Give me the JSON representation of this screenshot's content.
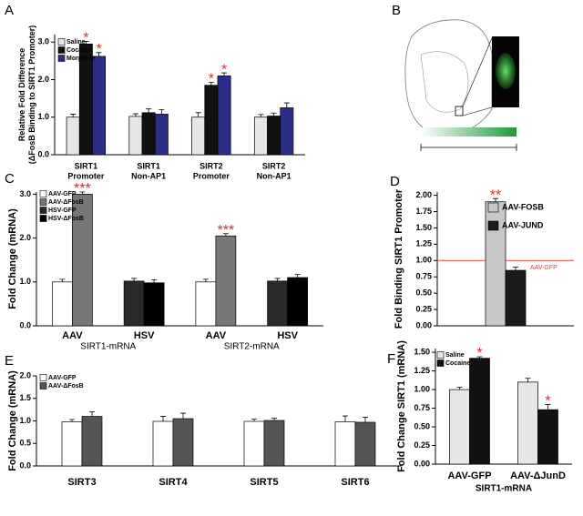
{
  "chart_data": [
    {
      "type": "bar",
      "panel_label": "A",
      "ylabel": [
        "Relative Fold Difference",
        "(ΔFosB Binding to SIRT1 Promoter)"
      ],
      "categories": [
        [
          "SIRT1",
          "Promoter"
        ],
        [
          "SIRT1",
          "Non-AP1"
        ],
        [
          "SIRT2",
          "Promoter"
        ],
        [
          "SIRT2",
          "Non-AP1"
        ]
      ],
      "series": [
        {
          "name": "Saline",
          "color": "#e6e6e6",
          "values": [
            1.0,
            1.02,
            1.0,
            1.0
          ],
          "errors": [
            0.08,
            0.07,
            0.12,
            0.07
          ],
          "significance": [
            null,
            null,
            null,
            null
          ]
        },
        {
          "name": "Cocaine",
          "color": "#111111",
          "values": [
            2.95,
            1.12,
            1.85,
            1.03
          ],
          "errors": [
            0.07,
            0.1,
            0.08,
            0.08
          ],
          "significance": [
            "*",
            null,
            "*",
            null
          ]
        },
        {
          "name": "Morphine",
          "color": "#2b2e86",
          "values": [
            2.62,
            1.08,
            2.1,
            1.25
          ],
          "errors": [
            0.1,
            0.12,
            0.08,
            0.13
          ],
          "significance": [
            "*",
            null,
            "*",
            null
          ]
        }
      ],
      "ylim": [
        0,
        3.2
      ],
      "yticks": [
        {
          "value": 0,
          "label": "0.0"
        },
        {
          "value": 1,
          "label": "1.0"
        },
        {
          "value": 2,
          "label": "2.0"
        },
        {
          "value": 3,
          "label": "3.0"
        }
      ]
    },
    {
      "type": "bar",
      "panel_label": "C",
      "ylabel": [
        "Fold Change (mRNA)"
      ],
      "categories": [
        [
          "AAV"
        ],
        [
          "HSV"
        ],
        [
          "AAV"
        ],
        [
          "HSV"
        ]
      ],
      "group_labels": [
        "SIRT1-mRNA",
        "SIRT2-mRNA"
      ],
      "series": [
        {
          "name": "AAV-GFP",
          "color": "#ffffff",
          "values": [
            1.0,
            null,
            1.0,
            null
          ],
          "errors": [
            0.06,
            null,
            0.06,
            null
          ],
          "significance": [
            null,
            null,
            null,
            null
          ]
        },
        {
          "name": "AAV-ΔFosB",
          "color": "#777777",
          "values": [
            3.0,
            null,
            2.05,
            null
          ],
          "errors": [
            0.05,
            null,
            0.05,
            null
          ],
          "significance": [
            "***",
            null,
            "***",
            null
          ]
        },
        {
          "name": "HSV-GFP",
          "color": "#2a2a2a",
          "values": [
            null,
            1.02,
            null,
            1.02
          ],
          "errors": [
            null,
            0.06,
            null,
            0.06
          ],
          "significance": [
            null,
            null,
            null,
            null
          ]
        },
        {
          "name": "HSV-ΔFosB",
          "color": "#000000",
          "values": [
            null,
            0.98,
            null,
            1.1
          ],
          "errors": [
            null,
            0.07,
            null,
            0.07
          ],
          "significance": [
            null,
            null,
            null,
            null
          ]
        }
      ],
      "ylim": [
        0,
        3.05
      ],
      "yticks": [
        {
          "value": 0,
          "label": "0.0"
        },
        {
          "value": 1,
          "label": "1.0"
        },
        {
          "value": 2,
          "label": "2.0"
        },
        {
          "value": 3,
          "label": "3.0"
        }
      ]
    },
    {
      "type": "bar",
      "panel_label": "D",
      "ylabel": [
        "Fold Binding SIRT1 Promoter"
      ],
      "categories": [
        []
      ],
      "series": [
        {
          "name": "AAV-FOSB",
          "color": "#c8c8c8",
          "values": [
            1.9
          ],
          "errors": [
            0.05
          ],
          "significance": [
            "**"
          ]
        },
        {
          "name": "AAV-JUND",
          "color": "#1a1a1a",
          "values": [
            0.85
          ],
          "errors": [
            0.05
          ],
          "significance": [
            null
          ]
        }
      ],
      "reference": {
        "value": 1,
        "label": "AAV-GFP",
        "color": "#e0413a"
      },
      "ylim": [
        0,
        2.05
      ],
      "yticks": [
        {
          "value": 0,
          "label": "0.00"
        },
        {
          "value": 0.25,
          "label": "0.25"
        },
        {
          "value": 0.5,
          "label": "0.50"
        },
        {
          "value": 0.75,
          "label": "0.75"
        },
        {
          "value": 1,
          "label": "1.00"
        },
        {
          "value": 1.25,
          "label": "1.25"
        },
        {
          "value": 1.5,
          "label": "1.50"
        },
        {
          "value": 1.75,
          "label": "1.75"
        },
        {
          "value": 2,
          "label": "2.00"
        }
      ]
    },
    {
      "type": "bar",
      "panel_label": "E",
      "ylabel": [
        "Fold Change (mRNA)"
      ],
      "categories": [
        [
          "SIRT3"
        ],
        [
          "SIRT4"
        ],
        [
          "SIRT5"
        ],
        [
          "SIRT6"
        ]
      ],
      "series": [
        {
          "name": "AAV-GFP",
          "color": "#ffffff",
          "values": [
            0.98,
            0.99,
            0.99,
            0.98
          ],
          "errors": [
            0.05,
            0.11,
            0.05,
            0.13
          ],
          "significance": [
            null,
            null,
            null,
            null
          ]
        },
        {
          "name": "AAV-ΔFosB",
          "color": "#555555",
          "values": [
            1.1,
            1.05,
            1.01,
            0.97
          ],
          "errors": [
            0.1,
            0.12,
            0.05,
            0.11
          ],
          "significance": [
            null,
            null,
            null,
            null
          ]
        }
      ],
      "ylim": [
        0,
        2.0
      ],
      "yticks": [
        {
          "value": 0,
          "label": "0.0"
        },
        {
          "value": 0.5,
          "label": "0.5"
        },
        {
          "value": 1,
          "label": "1.0"
        },
        {
          "value": 1.5,
          "label": "1.5"
        },
        {
          "value": 2,
          "label": "2.0"
        }
      ]
    },
    {
      "type": "bar",
      "panel_label": "F",
      "ylabel": [
        "Fold Change SIRT1 (mRNA)"
      ],
      "categories": [
        [
          "AAV-GFP"
        ],
        [
          "AAV-ΔJunD"
        ]
      ],
      "xlabel": "SIRT1-mRNA",
      "series": [
        {
          "name": "Saline",
          "color": "#e6e6e6",
          "values": [
            1.0,
            1.1
          ],
          "errors": [
            0.03,
            0.05
          ],
          "significance": [
            null,
            null
          ]
        },
        {
          "name": "Cocaine",
          "color": "#111111",
          "values": [
            1.42,
            0.73
          ],
          "errors": [
            0.02,
            0.07
          ],
          "significance": [
            "*",
            "*"
          ]
        }
      ],
      "ylim": [
        0,
        1.55
      ],
      "yticks": [
        {
          "value": 0,
          "label": "0.00"
        },
        {
          "value": 0.25,
          "label": "0.25"
        },
        {
          "value": 0.5,
          "label": "0.50"
        },
        {
          "value": 0.75,
          "label": "0.75"
        },
        {
          "value": 1,
          "label": "1.00"
        },
        {
          "value": 1.25,
          "label": "1.25"
        },
        {
          "value": 1.5,
          "label": "1.50"
        }
      ]
    }
  ],
  "diagram": {
    "panel_label": "B"
  }
}
